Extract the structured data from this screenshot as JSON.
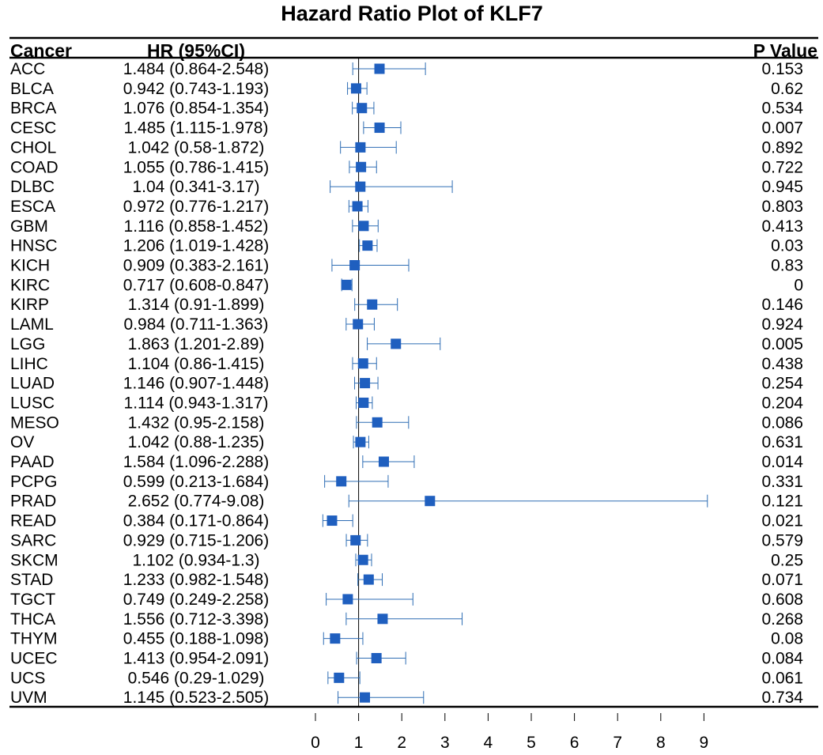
{
  "chart_data": {
    "type": "forest",
    "title": "Hazard Ratio Plot of KLF7",
    "columns": {
      "cancer": "Cancer",
      "hr": "HR (95%CI)",
      "p": "P Value"
    },
    "x_ticks": [
      0,
      1,
      2,
      3,
      4,
      5,
      6,
      7,
      8,
      9
    ],
    "xlim": [
      0,
      9
    ],
    "reference_line": 1,
    "colors": {
      "marker": "#1f5fbf",
      "ci": "#2e6db4",
      "ref": "#000000"
    },
    "rows": [
      {
        "cancer": "ACC",
        "hr_text": "1.484 (0.864-2.548)",
        "hr": 1.484,
        "lo": 0.864,
        "hi": 2.548,
        "p": "0.153"
      },
      {
        "cancer": "BLCA",
        "hr_text": "0.942 (0.743-1.193)",
        "hr": 0.942,
        "lo": 0.743,
        "hi": 1.193,
        "p": "0.62"
      },
      {
        "cancer": "BRCA",
        "hr_text": "1.076 (0.854-1.354)",
        "hr": 1.076,
        "lo": 0.854,
        "hi": 1.354,
        "p": "0.534"
      },
      {
        "cancer": "CESC",
        "hr_text": "1.485 (1.115-1.978)",
        "hr": 1.485,
        "lo": 1.115,
        "hi": 1.978,
        "p": "0.007"
      },
      {
        "cancer": "CHOL",
        "hr_text": "1.042 (0.58-1.872)",
        "hr": 1.042,
        "lo": 0.58,
        "hi": 1.872,
        "p": "0.892"
      },
      {
        "cancer": "COAD",
        "hr_text": "1.055 (0.786-1.415)",
        "hr": 1.055,
        "lo": 0.786,
        "hi": 1.415,
        "p": "0.722"
      },
      {
        "cancer": "DLBC",
        "hr_text": "1.04 (0.341-3.17)",
        "hr": 1.04,
        "lo": 0.341,
        "hi": 3.17,
        "p": "0.945"
      },
      {
        "cancer": "ESCA",
        "hr_text": "0.972 (0.776-1.217)",
        "hr": 0.972,
        "lo": 0.776,
        "hi": 1.217,
        "p": "0.803"
      },
      {
        "cancer": "GBM",
        "hr_text": "1.116 (0.858-1.452)",
        "hr": 1.116,
        "lo": 0.858,
        "hi": 1.452,
        "p": "0.413"
      },
      {
        "cancer": "HNSC",
        "hr_text": "1.206 (1.019-1.428)",
        "hr": 1.206,
        "lo": 1.019,
        "hi": 1.428,
        "p": "0.03"
      },
      {
        "cancer": "KICH",
        "hr_text": "0.909 (0.383-2.161)",
        "hr": 0.909,
        "lo": 0.383,
        "hi": 2.161,
        "p": "0.83"
      },
      {
        "cancer": "KIRC",
        "hr_text": "0.717 (0.608-0.847)",
        "hr": 0.717,
        "lo": 0.608,
        "hi": 0.847,
        "p": "0"
      },
      {
        "cancer": "KIRP",
        "hr_text": "1.314 (0.91-1.899)",
        "hr": 1.314,
        "lo": 0.91,
        "hi": 1.899,
        "p": "0.146"
      },
      {
        "cancer": "LAML",
        "hr_text": "0.984 (0.711-1.363)",
        "hr": 0.984,
        "lo": 0.711,
        "hi": 1.363,
        "p": "0.924"
      },
      {
        "cancer": "LGG",
        "hr_text": "1.863 (1.201-2.89)",
        "hr": 1.863,
        "lo": 1.201,
        "hi": 2.89,
        "p": "0.005"
      },
      {
        "cancer": "LIHC",
        "hr_text": "1.104 (0.86-1.415)",
        "hr": 1.104,
        "lo": 0.86,
        "hi": 1.415,
        "p": "0.438"
      },
      {
        "cancer": "LUAD",
        "hr_text": "1.146 (0.907-1.448)",
        "hr": 1.146,
        "lo": 0.907,
        "hi": 1.448,
        "p": "0.254"
      },
      {
        "cancer": "LUSC",
        "hr_text": "1.114 (0.943-1.317)",
        "hr": 1.114,
        "lo": 0.943,
        "hi": 1.317,
        "p": "0.204"
      },
      {
        "cancer": "MESO",
        "hr_text": "1.432 (0.95-2.158)",
        "hr": 1.432,
        "lo": 0.95,
        "hi": 2.158,
        "p": "0.086"
      },
      {
        "cancer": "OV",
        "hr_text": "1.042 (0.88-1.235)",
        "hr": 1.042,
        "lo": 0.88,
        "hi": 1.235,
        "p": "0.631"
      },
      {
        "cancer": "PAAD",
        "hr_text": "1.584 (1.096-2.288)",
        "hr": 1.584,
        "lo": 1.096,
        "hi": 2.288,
        "p": "0.014"
      },
      {
        "cancer": "PCPG",
        "hr_text": "0.599 (0.213-1.684)",
        "hr": 0.599,
        "lo": 0.213,
        "hi": 1.684,
        "p": "0.331"
      },
      {
        "cancer": "PRAD",
        "hr_text": "2.652 (0.774-9.08)",
        "hr": 2.652,
        "lo": 0.774,
        "hi": 9.08,
        "p": "0.121"
      },
      {
        "cancer": "READ",
        "hr_text": "0.384 (0.171-0.864)",
        "hr": 0.384,
        "lo": 0.171,
        "hi": 0.864,
        "p": "0.021"
      },
      {
        "cancer": "SARC",
        "hr_text": "0.929 (0.715-1.206)",
        "hr": 0.929,
        "lo": 0.715,
        "hi": 1.206,
        "p": "0.579"
      },
      {
        "cancer": "SKCM",
        "hr_text": "1.102 (0.934-1.3)",
        "hr": 1.102,
        "lo": 0.934,
        "hi": 1.3,
        "p": "0.25"
      },
      {
        "cancer": "STAD",
        "hr_text": "1.233 (0.982-1.548)",
        "hr": 1.233,
        "lo": 0.982,
        "hi": 1.548,
        "p": "0.071"
      },
      {
        "cancer": "TGCT",
        "hr_text": "0.749 (0.249-2.258)",
        "hr": 0.749,
        "lo": 0.249,
        "hi": 2.258,
        "p": "0.608"
      },
      {
        "cancer": "THCA",
        "hr_text": "1.556 (0.712-3.398)",
        "hr": 1.556,
        "lo": 0.712,
        "hi": 3.398,
        "p": "0.268"
      },
      {
        "cancer": "THYM",
        "hr_text": "0.455 (0.188-1.098)",
        "hr": 0.455,
        "lo": 0.188,
        "hi": 1.098,
        "p": "0.08"
      },
      {
        "cancer": "UCEC",
        "hr_text": "1.413 (0.954-2.091)",
        "hr": 1.413,
        "lo": 0.954,
        "hi": 2.091,
        "p": "0.084"
      },
      {
        "cancer": "UCS",
        "hr_text": "0.546 (0.29-1.029)",
        "hr": 0.546,
        "lo": 0.29,
        "hi": 1.029,
        "p": "0.061"
      },
      {
        "cancer": "UVM",
        "hr_text": "1.145 (0.523-2.505)",
        "hr": 1.145,
        "lo": 0.523,
        "hi": 2.505,
        "p": "0.734"
      }
    ]
  }
}
